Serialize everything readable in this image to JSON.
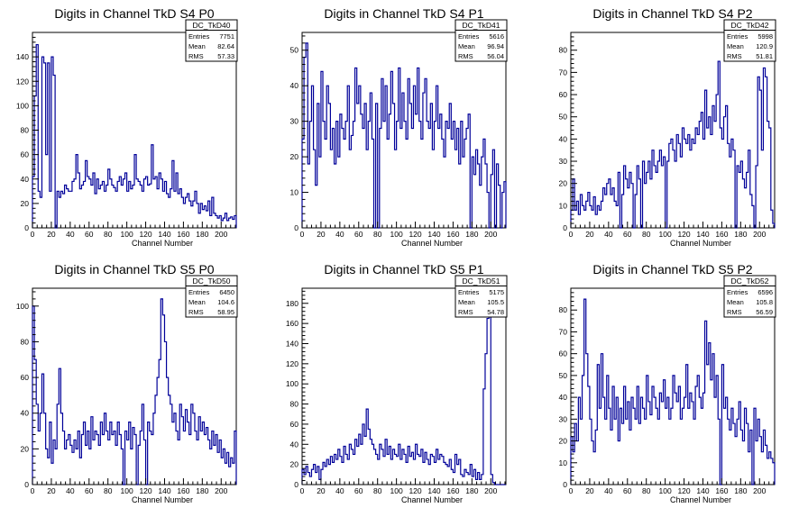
{
  "chart_data": [
    {
      "type": "histogram",
      "title": "Digits in Channel TkD S4 P0",
      "xlabel": "Channel Number",
      "ylabel": "",
      "xlim": [
        0,
        216
      ],
      "ylim": [
        0,
        160
      ],
      "xticks": [
        0,
        20,
        40,
        60,
        80,
        100,
        120,
        140,
        160,
        180,
        200
      ],
      "yticks": [
        0,
        20,
        40,
        60,
        80,
        100,
        120,
        140
      ],
      "stats": {
        "name": "DC_TkD40",
        "entries": "7751",
        "mean": "82.64",
        "rms": "57.33"
      },
      "bin_width": 2,
      "values": [
        42,
        108,
        150,
        30,
        25,
        140,
        135,
        60,
        135,
        30,
        140,
        125,
        0,
        30,
        25,
        30,
        28,
        35,
        32,
        30,
        30,
        38,
        40,
        60,
        45,
        32,
        35,
        38,
        55,
        42,
        40,
        35,
        45,
        28,
        40,
        32,
        35,
        38,
        30,
        35,
        48,
        40,
        35,
        33,
        30,
        38,
        42,
        35,
        40,
        45,
        30,
        38,
        32,
        35,
        60,
        40,
        38,
        35,
        30,
        40,
        42,
        35,
        36,
        68,
        40,
        42,
        32,
        45,
        40,
        30,
        38,
        28,
        25,
        32,
        55,
        30,
        45,
        28,
        32,
        25,
        20,
        25,
        28,
        22,
        18,
        22,
        30,
        20,
        12,
        20,
        15,
        18,
        14,
        22,
        10,
        25,
        12,
        10,
        8,
        10,
        6,
        8,
        12,
        6,
        8,
        9,
        7,
        10
      ]
    },
    {
      "type": "histogram",
      "title": "Digits in Channel TkD S4 P1",
      "xlabel": "Channel Number",
      "ylabel": "",
      "xlim": [
        0,
        216
      ],
      "ylim": [
        0,
        55
      ],
      "xticks": [
        0,
        20,
        40,
        60,
        80,
        100,
        120,
        140,
        160,
        180,
        200
      ],
      "yticks": [
        0,
        10,
        20,
        30,
        40,
        50
      ],
      "stats": {
        "name": "DC_TkD41",
        "entries": "5616",
        "mean": "96.94",
        "rms": "56.04"
      },
      "bin_width": 2,
      "values": [
        25,
        48,
        52,
        18,
        30,
        40,
        22,
        12,
        35,
        20,
        44,
        30,
        25,
        40,
        35,
        22,
        28,
        18,
        30,
        20,
        32,
        28,
        25,
        30,
        40,
        22,
        26,
        30,
        45,
        35,
        40,
        32,
        28,
        35,
        22,
        30,
        38,
        25,
        0,
        35,
        0,
        28,
        42,
        30,
        40,
        25,
        32,
        44,
        35,
        22,
        30,
        45,
        28,
        38,
        30,
        25,
        42,
        35,
        28,
        40,
        32,
        45,
        30,
        25,
        38,
        42,
        30,
        28,
        35,
        22,
        30,
        40,
        28,
        32,
        25,
        20,
        30,
        28,
        35,
        25,
        30,
        22,
        28,
        18,
        30,
        20,
        25,
        28,
        32,
        0,
        20,
        15,
        22,
        18,
        12,
        20,
        25,
        18,
        10,
        0,
        15,
        22,
        0,
        18,
        12,
        0,
        10,
        13
      ]
    },
    {
      "type": "histogram",
      "title": "Digits in Channel TkD S4 P2",
      "xlabel": "Channel Number",
      "ylabel": "",
      "xlim": [
        0,
        216
      ],
      "ylim": [
        0,
        88
      ],
      "xticks": [
        0,
        20,
        40,
        60,
        80,
        100,
        120,
        140,
        160,
        180,
        200
      ],
      "yticks": [
        0,
        10,
        20,
        30,
        40,
        50,
        60,
        70,
        80
      ],
      "stats": {
        "name": "DC_TkD42",
        "entries": "5998",
        "mean": "120.9",
        "rms": "51.81"
      },
      "bin_width": 2,
      "values": [
        8,
        22,
        8,
        12,
        6,
        15,
        10,
        8,
        12,
        16,
        10,
        8,
        14,
        6,
        10,
        8,
        12,
        18,
        15,
        20,
        22,
        15,
        18,
        12,
        10,
        25,
        0,
        15,
        28,
        22,
        18,
        25,
        20,
        0,
        15,
        28,
        22,
        0,
        30,
        20,
        25,
        30,
        22,
        35,
        28,
        25,
        30,
        35,
        28,
        32,
        0,
        30,
        38,
        40,
        35,
        30,
        42,
        38,
        32,
        45,
        40,
        38,
        42,
        35,
        40,
        38,
        45,
        42,
        48,
        52,
        40,
        62,
        45,
        50,
        42,
        55,
        48,
        60,
        75,
        45,
        40,
        50,
        55,
        38,
        32,
        40,
        35,
        0,
        28,
        25,
        30,
        22,
        18,
        25,
        35,
        15,
        10,
        0,
        28,
        68,
        62,
        35,
        72,
        68,
        48,
        45,
        8,
        2
      ]
    },
    {
      "type": "histogram",
      "title": "Digits in Channel TkD S5 P0",
      "xlabel": "Channel Number",
      "ylabel": "",
      "xlim": [
        0,
        216
      ],
      "ylim": [
        0,
        110
      ],
      "xticks": [
        0,
        20,
        40,
        60,
        80,
        100,
        120,
        140,
        160,
        180,
        200
      ],
      "yticks": [
        0,
        20,
        40,
        60,
        80,
        100
      ],
      "stats": {
        "name": "DC_TkD50",
        "entries": "6450",
        "mean": "104.6",
        "rms": "58.95"
      },
      "bin_width": 2,
      "values": [
        100,
        70,
        45,
        30,
        40,
        62,
        40,
        20,
        15,
        35,
        12,
        25,
        20,
        45,
        65,
        40,
        30,
        20,
        25,
        28,
        22,
        18,
        25,
        20,
        30,
        15,
        28,
        35,
        22,
        30,
        20,
        38,
        25,
        30,
        28,
        22,
        35,
        28,
        40,
        30,
        25,
        35,
        28,
        30,
        22,
        35,
        28,
        20,
        0,
        30,
        25,
        35,
        20,
        32,
        28,
        0,
        22,
        30,
        45,
        25,
        0,
        35,
        30,
        28,
        40,
        50,
        60,
        70,
        104,
        95,
        80,
        60,
        50,
        45,
        35,
        40,
        30,
        25,
        45,
        38,
        30,
        42,
        35,
        28,
        45,
        40,
        30,
        25,
        38,
        30,
        35,
        28,
        32,
        25,
        20,
        30,
        22,
        28,
        18,
        25,
        15,
        20,
        12,
        18,
        10,
        15,
        12,
        30
      ]
    },
    {
      "type": "histogram",
      "title": "Digits in Channel TkD S5 P1",
      "xlabel": "Channel Number",
      "ylabel": "",
      "xlim": [
        0,
        216
      ],
      "ylim": [
        0,
        195
      ],
      "xticks": [
        0,
        20,
        40,
        60,
        80,
        100,
        120,
        140,
        160,
        180,
        200
      ],
      "yticks": [
        0,
        20,
        40,
        60,
        80,
        100,
        120,
        140,
        160,
        180
      ],
      "stats": {
        "name": "DC_TkD51",
        "entries": "5175",
        "mean": "105.5",
        "rms": "54.78"
      },
      "bin_width": 2,
      "values": [
        15,
        10,
        18,
        12,
        8,
        15,
        20,
        12,
        18,
        5,
        15,
        22,
        18,
        25,
        20,
        28,
        22,
        30,
        25,
        35,
        28,
        22,
        38,
        30,
        25,
        40,
        35,
        30,
        45,
        38,
        50,
        40,
        60,
        48,
        75,
        55,
        45,
        40,
        35,
        30,
        25,
        40,
        35,
        28,
        45,
        30,
        38,
        25,
        35,
        30,
        28,
        40,
        25,
        35,
        30,
        22,
        38,
        28,
        32,
        25,
        40,
        30,
        28,
        35,
        22,
        32,
        25,
        20,
        30,
        28,
        22,
        35,
        25,
        30,
        28,
        22,
        20,
        18,
        25,
        15,
        12,
        30,
        20,
        25,
        10,
        8,
        15,
        12,
        10,
        20,
        8,
        15,
        5,
        12,
        5,
        10,
        95,
        130,
        165,
        180,
        10,
        2,
        0,
        0,
        0,
        0,
        0,
        0
      ]
    },
    {
      "type": "histogram",
      "title": "Digits in Channel TkD S5 P2",
      "xlabel": "Channel Number",
      "ylabel": "",
      "xlim": [
        0,
        216
      ],
      "ylim": [
        0,
        90
      ],
      "xticks": [
        0,
        20,
        40,
        60,
        80,
        100,
        120,
        140,
        160,
        180,
        200
      ],
      "yticks": [
        0,
        10,
        20,
        30,
        40,
        50,
        60,
        70,
        80
      ],
      "stats": {
        "name": "DC_TkD52",
        "entries": "6596",
        "mean": "105.8",
        "rms": "56.59"
      },
      "bin_width": 2,
      "values": [
        22,
        15,
        28,
        20,
        40,
        30,
        50,
        85,
        60,
        45,
        30,
        20,
        15,
        25,
        55,
        35,
        60,
        40,
        30,
        50,
        35,
        25,
        45,
        30,
        40,
        20,
        35,
        28,
        45,
        30,
        38,
        25,
        40,
        35,
        30,
        45,
        28,
        40,
        35,
        30,
        50,
        38,
        32,
        45,
        40,
        35,
        30,
        42,
        38,
        48,
        35,
        40,
        30,
        35,
        50,
        42,
        38,
        45,
        30,
        35,
        40,
        55,
        35,
        42,
        38,
        30,
        45,
        50,
        40,
        35,
        42,
        75,
        55,
        65,
        48,
        60,
        40,
        50,
        30,
        0,
        55,
        35,
        40,
        30,
        25,
        35,
        28,
        22,
        30,
        38,
        25,
        20,
        35,
        28,
        15,
        25,
        0,
        35,
        20,
        30,
        22,
        15,
        25,
        18,
        12,
        15,
        12,
        10
      ]
    }
  ]
}
